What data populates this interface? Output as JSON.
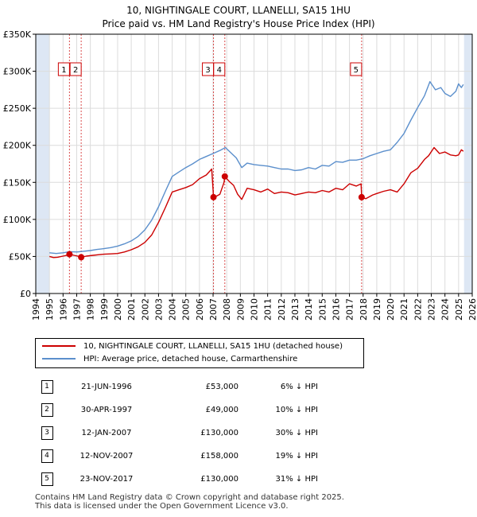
{
  "header": {
    "title": "10, NIGHTINGALE COURT, LLANELLI, SA15 1HU",
    "subtitle": "Price paid vs. HM Land Registry's House Price Index (HPI)"
  },
  "colors": {
    "property": "#cc0000",
    "hpi": "#5b8fcc",
    "shade": "#dde7f4",
    "grid": "#dcdcdc"
  },
  "chart_data": {
    "type": "line",
    "xlim": [
      1994,
      2026
    ],
    "ylim": [
      0,
      350000
    ],
    "yticks": [
      {
        "value": 0,
        "label": "£0"
      },
      {
        "value": 50000,
        "label": "£50K"
      },
      {
        "value": 100000,
        "label": "£100K"
      },
      {
        "value": 150000,
        "label": "£150K"
      },
      {
        "value": 200000,
        "label": "£200K"
      },
      {
        "value": 250000,
        "label": "£250K"
      },
      {
        "value": 300000,
        "label": "£300K"
      },
      {
        "value": 350000,
        "label": "£350K"
      }
    ],
    "xticks": [
      "1994",
      "1995",
      "1996",
      "1997",
      "1998",
      "1999",
      "2000",
      "2001",
      "2002",
      "2003",
      "2004",
      "2005",
      "2006",
      "2007",
      "2008",
      "2009",
      "2010",
      "2011",
      "2012",
      "2013",
      "2014",
      "2015",
      "2016",
      "2017",
      "2018",
      "2019",
      "2020",
      "2021",
      "2022",
      "2023",
      "2024",
      "2025",
      "2026"
    ],
    "data_range": [
      1995.0,
      2025.4
    ],
    "series": [
      {
        "name": "10, NIGHTINGALE COURT, LLANELLI, SA15 1HU (detached house)",
        "x": [
          1995.0,
          1995.3,
          1995.6,
          1996.0,
          1996.4,
          1996.47,
          1996.8,
          1997.2,
          1997.33,
          1997.7,
          1998.2,
          1998.7,
          1999.0,
          1999.5,
          2000.0,
          2000.5,
          2001.0,
          2001.5,
          2002.0,
          2002.5,
          2003.0,
          2003.5,
          2004.0,
          2004.5,
          2005.0,
          2005.5,
          2006.0,
          2006.5,
          2006.9,
          2007.0,
          2007.03,
          2007.2,
          2007.5,
          2007.8,
          2007.86,
          2008.2,
          2008.5,
          2008.8,
          2009.1,
          2009.5,
          2010.0,
          2010.5,
          2011.0,
          2011.5,
          2012.0,
          2012.5,
          2013.0,
          2013.5,
          2014.0,
          2014.5,
          2015.0,
          2015.5,
          2016.0,
          2016.5,
          2017.0,
          2017.5,
          2017.85,
          2017.89,
          2018.2,
          2018.7,
          2019.0,
          2019.5,
          2020.0,
          2020.5,
          2021.0,
          2021.5,
          2022.0,
          2022.5,
          2022.8,
          2023.2,
          2023.6,
          2024.0,
          2024.4,
          2024.8,
          2025.0,
          2025.2,
          2025.35
        ],
        "values": [
          50000,
          48500,
          49000,
          50500,
          52000,
          53000,
          51500,
          50000,
          49000,
          50500,
          51500,
          52500,
          53000,
          53500,
          54000,
          56000,
          59000,
          63000,
          69000,
          79000,
          96000,
          116000,
          137000,
          140000,
          143000,
          147000,
          155000,
          160000,
          168000,
          140000,
          130000,
          131000,
          134000,
          150000,
          158000,
          151000,
          146000,
          134000,
          127000,
          142000,
          140000,
          137000,
          141000,
          135000,
          137000,
          136000,
          133000,
          135000,
          137000,
          136000,
          139000,
          137000,
          142000,
          140000,
          148000,
          145000,
          148000,
          130000,
          128000,
          133000,
          135000,
          138000,
          140000,
          137000,
          148000,
          163000,
          169000,
          181000,
          186000,
          197000,
          189000,
          191000,
          187000,
          186000,
          187000,
          194000,
          192000
        ]
      },
      {
        "name": "HPI: Average price, detached house, Carmarthenshire",
        "x": [
          1995.0,
          1995.5,
          1996.0,
          1996.5,
          1997.0,
          1997.5,
          1998.0,
          1998.5,
          1999.0,
          1999.5,
          2000.0,
          2000.5,
          2001.0,
          2001.5,
          2002.0,
          2002.5,
          2003.0,
          2003.5,
          2004.0,
          2004.5,
          2005.0,
          2005.5,
          2006.0,
          2006.5,
          2007.0,
          2007.5,
          2007.9,
          2008.3,
          2008.7,
          2009.1,
          2009.5,
          2010.0,
          2010.5,
          2011.0,
          2011.5,
          2012.0,
          2012.5,
          2013.0,
          2013.5,
          2014.0,
          2014.5,
          2015.0,
          2015.5,
          2016.0,
          2016.5,
          2017.0,
          2017.5,
          2018.0,
          2018.5,
          2019.0,
          2019.5,
          2020.0,
          2020.5,
          2021.0,
          2021.5,
          2022.0,
          2022.5,
          2022.9,
          2023.3,
          2023.7,
          2024.0,
          2024.4,
          2024.8,
          2025.0,
          2025.2,
          2025.35
        ],
        "values": [
          55000,
          54000,
          55000,
          56500,
          56000,
          57000,
          58000,
          59500,
          60500,
          62000,
          64000,
          67000,
          71000,
          77000,
          86000,
          99000,
          117000,
          138000,
          158000,
          164000,
          170000,
          175000,
          181000,
          185000,
          189000,
          193000,
          197000,
          190000,
          183000,
          170000,
          176000,
          174000,
          173000,
          172000,
          170000,
          168000,
          168000,
          166000,
          167000,
          170000,
          168000,
          173000,
          172000,
          178000,
          177000,
          180000,
          180000,
          182000,
          186000,
          189000,
          192000,
          194000,
          204000,
          216000,
          234000,
          251000,
          267000,
          286000,
          275000,
          278000,
          270000,
          266000,
          273000,
          283000,
          278000,
          282000
        ]
      }
    ],
    "sales": [
      {
        "id": "1",
        "x": 1996.47,
        "value": 53000
      },
      {
        "id": "2",
        "x": 1997.33,
        "value": 49000
      },
      {
        "id": "3",
        "x": 2007.03,
        "value": 130000
      },
      {
        "id": "4",
        "x": 2007.86,
        "value": 158000
      },
      {
        "id": "5",
        "x": 2017.89,
        "value": 130000
      }
    ]
  },
  "legend": {
    "property_label": "10, NIGHTINGALE COURT, LLANELLI, SA15 1HU (detached house)",
    "hpi_label": "HPI: Average price, detached house, Carmarthenshire"
  },
  "table": {
    "rows": [
      {
        "num": "1",
        "date": "21-JUN-1996",
        "price": "£53,000",
        "hpi": "6% ↓ HPI"
      },
      {
        "num": "2",
        "date": "30-APR-1997",
        "price": "£49,000",
        "hpi": "10% ↓ HPI"
      },
      {
        "num": "3",
        "date": "12-JAN-2007",
        "price": "£130,000",
        "hpi": "30% ↓ HPI"
      },
      {
        "num": "4",
        "date": "12-NOV-2007",
        "price": "£158,000",
        "hpi": "19% ↓ HPI"
      },
      {
        "num": "5",
        "date": "23-NOV-2017",
        "price": "£130,000",
        "hpi": "31% ↓ HPI"
      }
    ]
  },
  "footer": {
    "line1": "Contains HM Land Registry data © Crown copyright and database right 2025.",
    "line2": "This data is licensed under the Open Government Licence v3.0."
  }
}
